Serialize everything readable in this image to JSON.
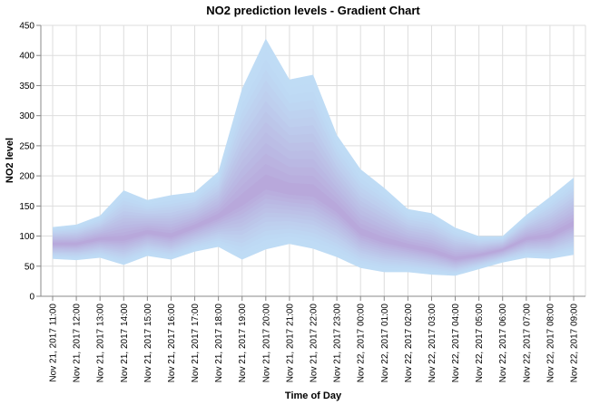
{
  "chart_data": {
    "type": "area",
    "title": "NO2 prediction levels - Gradient Chart",
    "xlabel": "Time of Day",
    "ylabel": "NO2 level",
    "ylim": [
      0,
      450
    ],
    "yticks": [
      0,
      50,
      100,
      150,
      200,
      250,
      300,
      350,
      400,
      450
    ],
    "grid": true,
    "categories": [
      "Nov 21, 2017 11:00",
      "Nov 21, 2017 12:00",
      "Nov 21, 2017 13:00",
      "Nov 21, 2017 14:00",
      "Nov 21, 2017 15:00",
      "Nov 21, 2017 16:00",
      "Nov 21, 2017 17:00",
      "Nov 21, 2017 18:00",
      "Nov 21, 2017 19:00",
      "Nov 21, 2017 20:00",
      "Nov 21, 2017 21:00",
      "Nov 21, 2017 22:00",
      "Nov 21, 2017 23:00",
      "Nov 22, 2017 00:00",
      "Nov 22, 2017 01:00",
      "Nov 22, 2017 02:00",
      "Nov 22, 2017 03:00",
      "Nov 22, 2017 04:00",
      "Nov 22, 2017 05:00",
      "Nov 22, 2017 06:00",
      "Nov 22, 2017 07:00",
      "Nov 22, 2017 08:00",
      "Nov 22, 2017 09:00"
    ],
    "series": [
      {
        "values": [
          62,
          60,
          64,
          52,
          67,
          61,
          74,
          82,
          61,
          78,
          87,
          79,
          65,
          47,
          40,
          40,
          36,
          34,
          45,
          56,
          64,
          62,
          69
        ]
      },
      {
        "values": [
          87,
          87,
          95,
          95,
          106,
          100,
          115,
          132,
          157,
          185,
          175,
          172,
          145,
          106,
          92,
          83,
          75,
          62,
          68,
          77,
          95,
          100,
          120
        ]
      },
      {
        "values": [
          115,
          119,
          134,
          176,
          160,
          168,
          173,
          207,
          345,
          428,
          360,
          368,
          268,
          211,
          180,
          145,
          138,
          114,
          100,
          100,
          135,
          165,
          197
        ]
      }
    ],
    "colors": {
      "outer_band": "#bfdcf5",
      "center": "#b79ed6"
    }
  }
}
